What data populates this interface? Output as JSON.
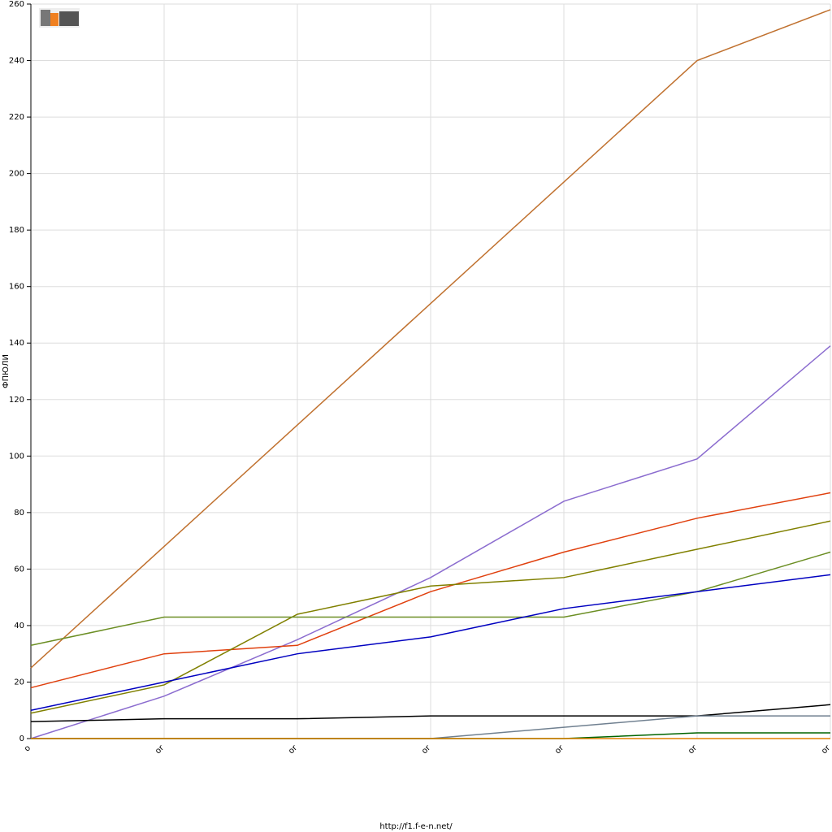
{
  "chart_data": {
    "type": "line",
    "y_label": "ФПЮЛИ",
    "footer": "http://f1.f-e-n.net/",
    "categories": [
      "o",
      "or",
      "or",
      "or",
      "or",
      "or",
      "or"
    ],
    "ylim": [
      0,
      260
    ],
    "yticks": [
      0,
      20,
      40,
      60,
      80,
      100,
      120,
      140,
      160,
      180,
      200,
      220,
      240,
      260
    ],
    "grid": true,
    "series": [
      {
        "color": "#c0712f",
        "values": [
          25,
          68,
          111,
          154,
          197,
          240,
          258
        ]
      },
      {
        "color": "#8b6ccf",
        "values": [
          0,
          15,
          35,
          57,
          84,
          99,
          139
        ]
      },
      {
        "color": "#e0400e",
        "values": [
          18,
          30,
          33,
          52,
          66,
          78,
          87
        ]
      },
      {
        "color": "#808000",
        "values": [
          9,
          19,
          44,
          54,
          57,
          67,
          77
        ]
      },
      {
        "color": "#6b8e23",
        "values": [
          33,
          43,
          43,
          43,
          43,
          52,
          66
        ]
      },
      {
        "color": "#0000c0",
        "values": [
          10,
          20,
          30,
          36,
          46,
          52,
          58
        ]
      },
      {
        "color": "#000000",
        "values": [
          6,
          7,
          7,
          8,
          8,
          8,
          12
        ]
      },
      {
        "color": "#708090",
        "values": [
          0,
          0,
          0,
          0,
          4,
          8,
          8
        ]
      },
      {
        "color": "#006400",
        "values": [
          0,
          0,
          0,
          0,
          0,
          2,
          2
        ]
      },
      {
        "color": "#e08000",
        "values": [
          0,
          0,
          0,
          0,
          0,
          0,
          0
        ]
      }
    ]
  }
}
